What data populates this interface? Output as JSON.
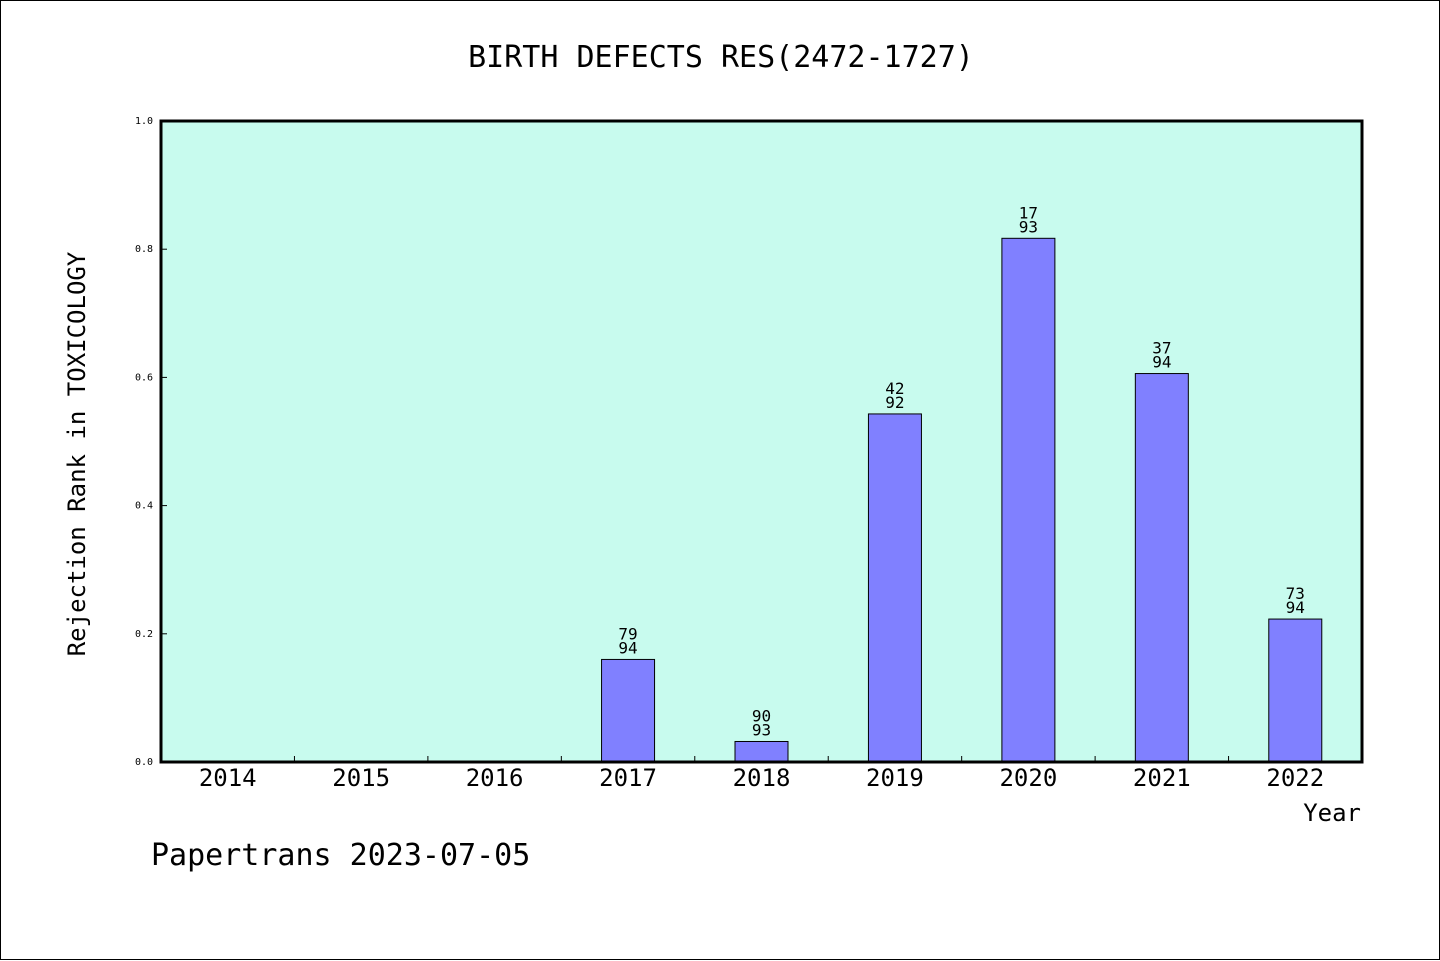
{
  "chart_data": {
    "type": "bar",
    "title": "BIRTH DEFECTS RES(2472-1727)",
    "xlabel": "Year",
    "ylabel": "Rejection Rank in TOXICOLOGY",
    "categories": [
      "2014",
      "2015",
      "2016",
      "2017",
      "2018",
      "2019",
      "2020",
      "2021",
      "2022"
    ],
    "values": [
      null,
      null,
      null,
      0.16,
      0.032,
      0.543,
      0.817,
      0.606,
      0.223
    ],
    "bar_labels": [
      null,
      null,
      null,
      {
        "top": "79",
        "bottom": "94"
      },
      {
        "top": "90",
        "bottom": "93"
      },
      {
        "top": "42",
        "bottom": "92"
      },
      {
        "top": "17",
        "bottom": "93"
      },
      {
        "top": "37",
        "bottom": "94"
      },
      {
        "top": "73",
        "bottom": "94"
      }
    ],
    "yticks": [
      "0.0",
      "0.2",
      "0.4",
      "0.6",
      "0.8",
      "1.0"
    ],
    "ylim": [
      0,
      1.0
    ],
    "grid": false,
    "colors": {
      "plot_background": "#c8fbee",
      "bar_fill": "#8080ff",
      "bar_edge": "#000000"
    }
  },
  "footer": "Papertrans 2023-07-05"
}
